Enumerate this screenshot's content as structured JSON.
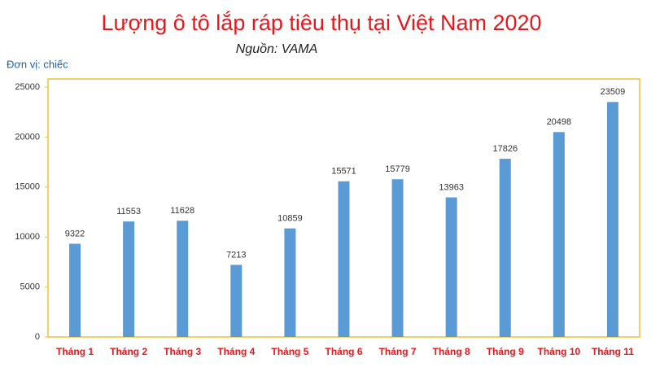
{
  "chart_data": {
    "type": "bar",
    "title": "Lượng ô tô lắp ráp tiêu thụ tại Việt Nam 2020",
    "subtitle": "Nguồn: VAMA",
    "unit_note": "Đơn vị: chiếc",
    "categories": [
      "Tháng 1",
      "Tháng 2",
      "Tháng 3",
      "Tháng 4",
      "Tháng 5",
      "Tháng 6",
      "Tháng 7",
      "Tháng 8",
      "Tháng 9",
      "Tháng 10",
      "Tháng 11"
    ],
    "values": [
      9322,
      11553,
      11628,
      7213,
      10859,
      15571,
      15779,
      13963,
      17826,
      20498,
      23509
    ],
    "color": "#5b9bd5",
    "ylim": [
      0,
      25000
    ],
    "yticks": [
      0,
      5000,
      10000,
      15000,
      20000,
      25000
    ],
    "grid": false
  }
}
